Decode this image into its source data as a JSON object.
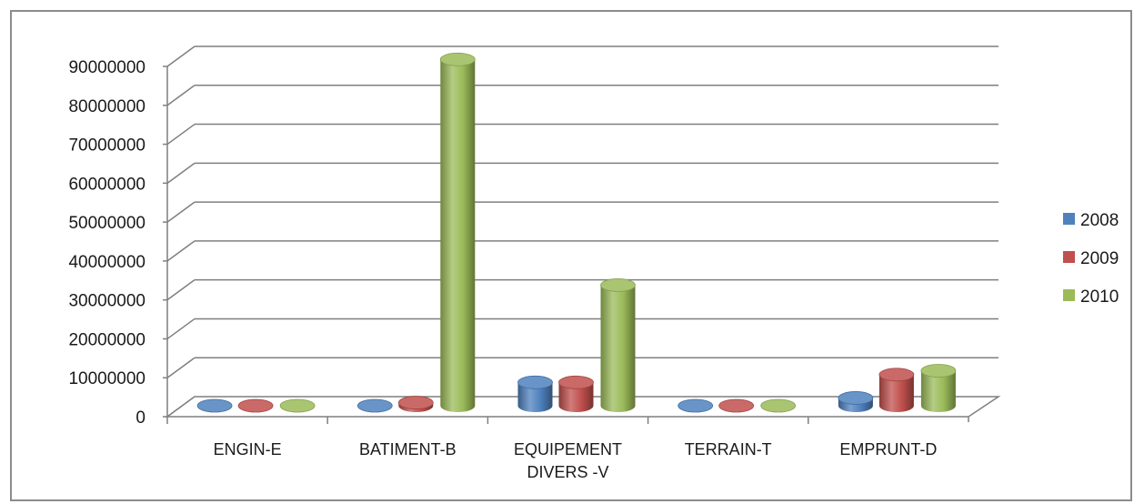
{
  "chart_data": {
    "type": "bar",
    "categories": [
      "ENGIN-E",
      "BATIMENT-B",
      "EQUIPEMENT DIVERS -V",
      "TERRAIN-T",
      "EMPRUNT-D"
    ],
    "category_lines": [
      [
        "ENGIN-E"
      ],
      [
        "BATIMENT-B"
      ],
      [
        "EQUIPEMENT",
        "DIVERS -V"
      ],
      [
        "TERRAIN-T"
      ],
      [
        "EMPRUNT-D"
      ]
    ],
    "series": [
      {
        "name": "2008",
        "values": [
          0,
          0,
          6000000,
          0,
          2000000
        ],
        "color": "#4f81bd"
      },
      {
        "name": "2009",
        "values": [
          0,
          800000,
          6000000,
          0,
          8000000
        ],
        "color": "#c0504d"
      },
      {
        "name": "2010",
        "values": [
          0,
          89000000,
          31000000,
          0,
          9000000
        ],
        "color": "#9bbb59"
      }
    ],
    "yticks": [
      "0",
      "10000000",
      "20000000",
      "30000000",
      "40000000",
      "50000000",
      "60000000",
      "70000000",
      "80000000",
      "90000000"
    ],
    "ylim": [
      0,
      90000000
    ],
    "grid": true,
    "legend_position": "right",
    "style": "3d-cylinder"
  }
}
